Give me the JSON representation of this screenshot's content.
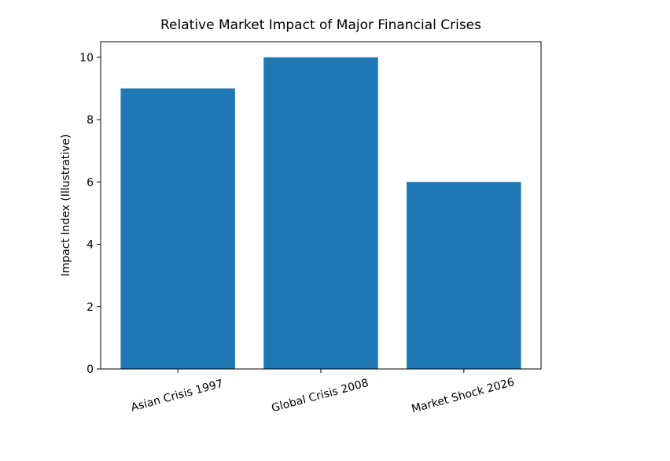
{
  "chart_data": {
    "type": "bar",
    "title": "Relative Market Impact of Major Financial Crises",
    "y_label": "Impact Index (Illustrative)",
    "categories": [
      "Asian Crisis 1997",
      "Global Crisis 2008",
      "Market Shock 2026"
    ],
    "values": [
      9,
      10,
      6
    ],
    "color": "#1f77b4",
    "ylim": [
      0,
      10.5
    ],
    "yticks": [
      0,
      2,
      4,
      6,
      8,
      10
    ],
    "grid": false
  }
}
